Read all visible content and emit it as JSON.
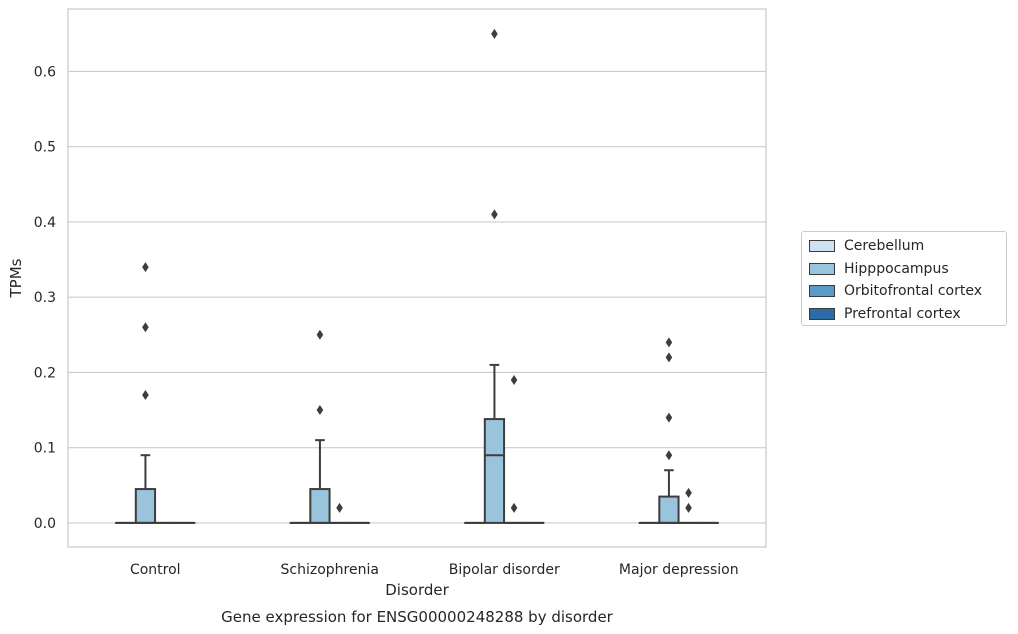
{
  "chart_data": {
    "type": "box",
    "caption": "Gene expression for ENSG00000248288 by disorder",
    "xlabel": "Disorder",
    "ylabel": "TPMs",
    "ylim": [
      -0.032,
      0.683
    ],
    "yticks": [
      "0.0",
      "0.1",
      "0.2",
      "0.3",
      "0.4",
      "0.5",
      "0.6"
    ],
    "ytick_values": [
      0.0,
      0.1,
      0.2,
      0.3,
      0.4,
      0.5,
      0.6
    ],
    "grid": "horizontal",
    "legend_position": "right",
    "categories": [
      "Control",
      "Schizophrenia",
      "Bipolar disorder",
      "Major depression"
    ],
    "series": [
      {
        "name": "Cerebellum",
        "color": "#cfe1f2",
        "boxes": [
          {
            "q1": 0,
            "median": 0,
            "q3": 0,
            "whisker_low": 0,
            "whisker_high": 0,
            "outliers": []
          },
          {
            "q1": 0,
            "median": 0,
            "q3": 0,
            "whisker_low": 0,
            "whisker_high": 0,
            "outliers": []
          },
          {
            "q1": 0,
            "median": 0,
            "q3": 0,
            "whisker_low": 0,
            "whisker_high": 0,
            "outliers": []
          },
          {
            "q1": 0,
            "median": 0,
            "q3": 0,
            "whisker_low": 0,
            "whisker_high": 0,
            "outliers": []
          }
        ]
      },
      {
        "name": "Hipppocampus",
        "color": "#9ac3dc",
        "boxes": [
          {
            "q1": 0,
            "median": 0,
            "q3": 0.045,
            "whisker_low": 0,
            "whisker_high": 0.09,
            "outliers": [
              0.17,
              0.26,
              0.34
            ]
          },
          {
            "q1": 0,
            "median": 0,
            "q3": 0.045,
            "whisker_low": 0,
            "whisker_high": 0.11,
            "outliers": [
              0.15,
              0.25
            ]
          },
          {
            "q1": 0,
            "median": 0.09,
            "q3": 0.138,
            "whisker_low": 0,
            "whisker_high": 0.21,
            "outliers": [
              0.41,
              0.65
            ]
          },
          {
            "q1": 0,
            "median": 0,
            "q3": 0.035,
            "whisker_low": 0,
            "whisker_high": 0.07,
            "outliers": [
              0.09,
              0.14,
              0.22,
              0.24
            ]
          }
        ]
      },
      {
        "name": "Orbitofrontal cortex",
        "color": "#5a9cc9",
        "boxes": [
          {
            "q1": 0,
            "median": 0,
            "q3": 0,
            "whisker_low": 0,
            "whisker_high": 0,
            "outliers": []
          },
          {
            "q1": 0,
            "median": 0,
            "q3": 0,
            "whisker_low": 0,
            "whisker_high": 0,
            "outliers": [
              0.02
            ]
          },
          {
            "q1": 0,
            "median": 0,
            "q3": 0,
            "whisker_low": 0,
            "whisker_high": 0,
            "outliers": [
              0.02,
              0.19
            ]
          },
          {
            "q1": 0,
            "median": 0,
            "q3": 0,
            "whisker_low": 0,
            "whisker_high": 0,
            "outliers": [
              0.02,
              0.04
            ]
          }
        ]
      },
      {
        "name": "Prefrontal cortex",
        "color": "#2b6ba6",
        "boxes": [
          {
            "q1": 0,
            "median": 0,
            "q3": 0,
            "whisker_low": 0,
            "whisker_high": 0,
            "outliers": []
          },
          {
            "q1": 0,
            "median": 0,
            "q3": 0,
            "whisker_low": 0,
            "whisker_high": 0,
            "outliers": []
          },
          {
            "q1": 0,
            "median": 0,
            "q3": 0,
            "whisker_low": 0,
            "whisker_high": 0,
            "outliers": []
          },
          {
            "q1": 0,
            "median": 0,
            "q3": 0,
            "whisker_low": 0,
            "whisker_high": 0,
            "outliers": []
          }
        ]
      }
    ]
  }
}
